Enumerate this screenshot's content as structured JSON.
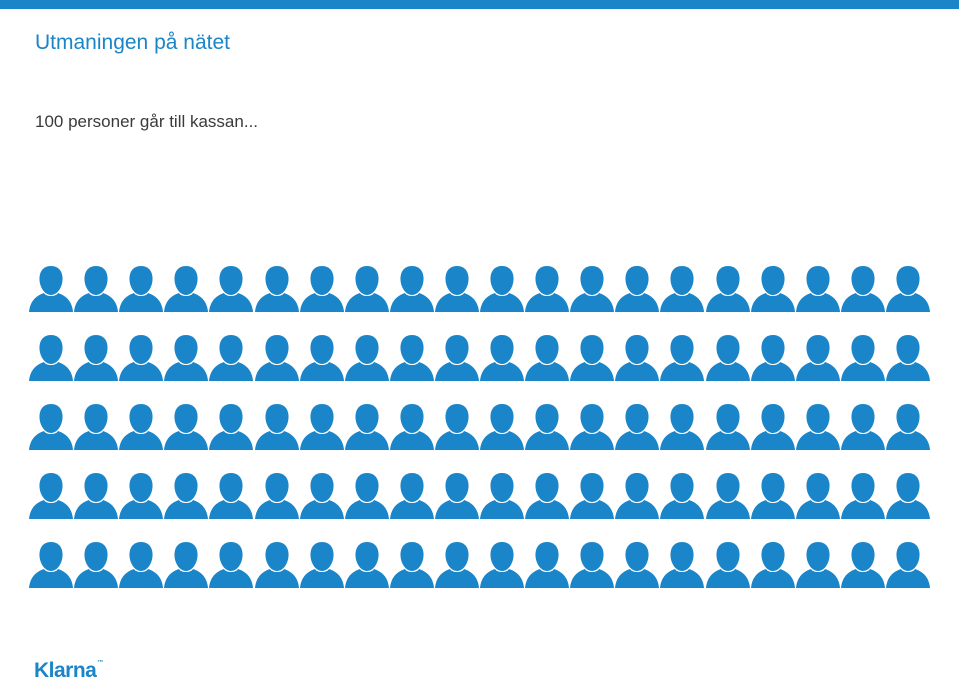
{
  "header": {
    "title": "Utmaningen på nätet",
    "subtitle": "100 personer går till kassan..."
  },
  "people": {
    "count": 100,
    "columns": 20,
    "rows": 5,
    "icon": "person-icon",
    "color": "#1a85c8"
  },
  "footer": {
    "logo_text": "Klarna",
    "logo_mark": "™"
  },
  "colors": {
    "accent": "#1a85c8",
    "text": "#3a3a3a"
  }
}
